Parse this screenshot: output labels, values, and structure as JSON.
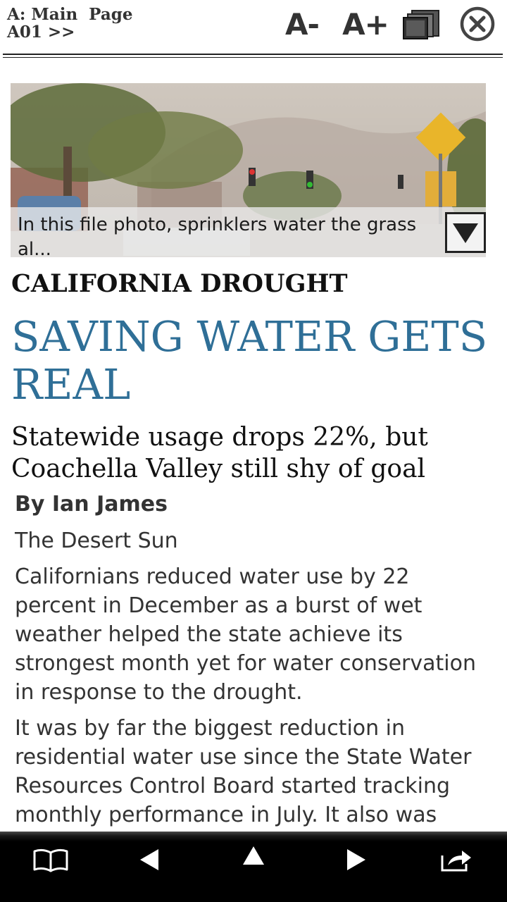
{
  "header": {
    "section_line1": "A: Main  Page",
    "section_line2": "A01 >>",
    "decrease_font_label": "A-",
    "increase_font_label": "A+",
    "pages_icon": "pages-icon",
    "close_icon": "close-circle-icon"
  },
  "photo": {
    "caption": "In this file photo, sprinklers water the grass al...",
    "toggle_icon": "triangle-down-icon"
  },
  "article": {
    "kicker": "CALIFORNIA DROUGHT",
    "headline": "SAVING WATER GETS REAL",
    "deck": "Statewide usage drops 22%, but Coachella Valley still shy of goal",
    "byline": "By Ian James",
    "source": "The Desert Sun",
    "paragraphs": [
      "Californians reduced water use by 22 percent in December as a burst of wet weather helped the state achieve its strongest month yet for water conservation in response to the drought.",
      "It was by far the biggest reduction in residential water use since the State Water Resources Control Board started tracking monthly performance in July. It also was"
    ]
  },
  "toolbar": {
    "icons": [
      "book-icon",
      "previous-icon",
      "up-icon",
      "next-icon",
      "share-icon"
    ]
  },
  "colors": {
    "headline": "#2f6f97",
    "toolbar_bg": "#000000"
  }
}
